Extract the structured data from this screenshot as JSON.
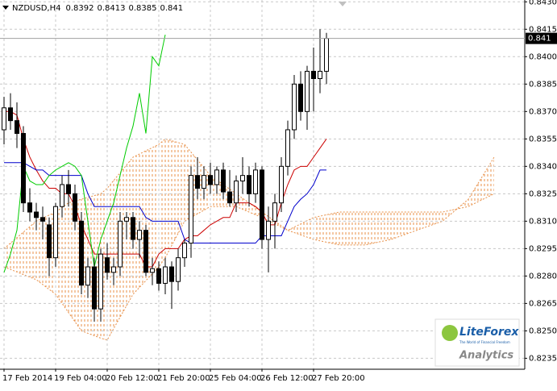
{
  "chart_data": {
    "type": "candlestick",
    "symbol": "NZDUSD,H4",
    "categories": [
      "17 Feb 2014",
      null,
      null,
      null,
      null,
      null,
      null,
      null,
      "19 Feb 04:00",
      null,
      null,
      null,
      null,
      null,
      null,
      null,
      "20 Feb 12:00",
      null,
      null,
      null,
      null,
      null,
      null,
      null,
      "21 Feb 20:00",
      null,
      null,
      null,
      null,
      null,
      null,
      null,
      "25 Feb 04:00",
      null,
      null,
      null,
      null,
      null,
      null,
      null,
      "26 Feb 12:00",
      null,
      null,
      null,
      null,
      null,
      null,
      null,
      "27 Feb 20:00",
      null,
      null
    ],
    "ohlc": {
      "open": [
        0.836,
        0.8372,
        0.8365,
        0.8358,
        0.832,
        0.8315,
        0.8312,
        0.8308,
        0.829,
        0.8318,
        0.833,
        0.8325,
        0.831,
        0.8275,
        0.8285,
        0.8262,
        0.829,
        0.8282,
        0.8285,
        0.831,
        0.8312,
        0.83,
        0.8305,
        0.8282,
        0.8284,
        0.8276,
        0.8285,
        0.8277,
        0.829,
        0.8298,
        0.8335,
        0.8328,
        0.8335,
        0.833,
        0.8338,
        0.8326,
        0.832,
        0.8332,
        0.8335,
        0.8325,
        0.8338,
        0.83,
        0.831,
        0.832,
        0.834,
        0.836,
        0.8385,
        0.837,
        0.8392,
        0.8388,
        0.8392
      ],
      "high": [
        0.8378,
        0.838,
        0.8375,
        0.8362,
        0.8328,
        0.832,
        0.8318,
        0.8312,
        0.832,
        0.8335,
        0.8338,
        0.833,
        0.8315,
        0.829,
        0.829,
        0.8295,
        0.8298,
        0.829,
        0.8315,
        0.8315,
        0.8315,
        0.831,
        0.8308,
        0.829,
        0.8288,
        0.829,
        0.8288,
        0.8295,
        0.83,
        0.834,
        0.8345,
        0.834,
        0.8342,
        0.834,
        0.8342,
        0.8338,
        0.8335,
        0.8345,
        0.834,
        0.8342,
        0.834,
        0.8318,
        0.8325,
        0.8345,
        0.8365,
        0.839,
        0.8392,
        0.8395,
        0.8405,
        0.8415,
        0.8413
      ],
      "low": [
        0.8352,
        0.836,
        0.835,
        0.8315,
        0.831,
        0.8305,
        0.83,
        0.828,
        0.8285,
        0.8312,
        0.8318,
        0.8305,
        0.827,
        0.8268,
        0.8255,
        0.8255,
        0.8278,
        0.8275,
        0.828,
        0.83,
        0.8295,
        0.829,
        0.828,
        0.8275,
        0.8272,
        0.827,
        0.8262,
        0.8272,
        0.8285,
        0.829,
        0.8322,
        0.8322,
        0.8325,
        0.8325,
        0.8322,
        0.8318,
        0.8315,
        0.8325,
        0.8318,
        0.832,
        0.8295,
        0.8282,
        0.8295,
        0.8315,
        0.8335,
        0.8355,
        0.8365,
        0.836,
        0.837,
        0.838,
        0.8385
      ],
      "close": [
        0.8372,
        0.8365,
        0.8358,
        0.832,
        0.8315,
        0.8312,
        0.831,
        0.829,
        0.8318,
        0.833,
        0.8325,
        0.831,
        0.8275,
        0.8285,
        0.8262,
        0.8292,
        0.8282,
        0.8285,
        0.831,
        0.8312,
        0.83,
        0.8305,
        0.8282,
        0.8284,
        0.8276,
        0.8285,
        0.8277,
        0.829,
        0.8298,
        0.8335,
        0.8328,
        0.8335,
        0.833,
        0.8338,
        0.8326,
        0.832,
        0.8332,
        0.8335,
        0.8325,
        0.8338,
        0.83,
        0.831,
        0.832,
        0.834,
        0.836,
        0.8385,
        0.837,
        0.8392,
        0.8388,
        0.8392,
        0.841
      ],
      "up_color": "#ffffff",
      "down_color": "#000000",
      "edge_color": "#000000"
    },
    "series": [
      {
        "color": "#cc0000",
        "values": [
          0.837,
          0.837,
          0.8368,
          0.8355,
          0.8345,
          0.8338,
          0.8332,
          0.8328,
          0.8328,
          0.8325,
          0.8325,
          0.8318,
          0.8308,
          0.83,
          0.8292,
          0.8292,
          0.8292,
          0.8292,
          0.8292,
          0.8292,
          0.8292,
          0.8292,
          0.8285,
          0.8285,
          0.8292,
          0.8295,
          0.8295,
          0.8295,
          0.83,
          0.8302,
          0.8302,
          0.8305,
          0.8308,
          0.831,
          0.8312,
          0.8312,
          0.832,
          0.832,
          0.832,
          0.8318,
          0.8315,
          0.8308,
          0.8308,
          0.832,
          0.833,
          0.8338,
          0.834,
          0.834,
          0.8345,
          0.835,
          0.8355
        ]
      },
      {
        "color": "#0000cc",
        "values": [
          0.8342,
          0.8342,
          0.8342,
          0.8342,
          0.834,
          0.8338,
          0.8338,
          0.8335,
          0.8335,
          0.8335,
          0.8335,
          0.8335,
          0.8335,
          0.8325,
          0.8318,
          0.8318,
          0.8318,
          0.8318,
          0.8318,
          0.8318,
          0.8318,
          0.8318,
          0.8312,
          0.831,
          0.831,
          0.831,
          0.831,
          0.831,
          0.83,
          0.8298,
          0.8298,
          0.8298,
          0.8298,
          0.8298,
          0.8298,
          0.8298,
          0.8298,
          0.8298,
          0.8298,
          0.8298,
          0.8302,
          0.8302,
          0.8302,
          0.8302,
          0.831,
          0.8318,
          0.8322,
          0.8325,
          0.833,
          0.8338,
          0.8338
        ]
      },
      {
        "color": "#00cc00",
        "values": [
          0.8282,
          0.8292,
          0.8305,
          0.834,
          0.8332,
          0.833,
          0.833,
          0.8335,
          0.8338,
          0.834,
          0.8342,
          0.834,
          0.8335,
          0.831,
          0.8285,
          0.83,
          0.831,
          0.832,
          0.8335,
          0.835,
          0.8362,
          0.838,
          0.8358,
          0.84,
          0.8395,
          0.8412,
          null,
          null,
          null,
          null,
          null,
          null,
          null,
          null,
          null,
          null,
          null,
          null,
          null,
          null,
          null,
          null,
          null,
          null,
          null,
          null,
          null,
          null,
          null,
          null,
          null
        ]
      }
    ],
    "cloud": {
      "color": "#e8914a",
      "x": [
        0,
        5,
        8,
        10,
        12,
        15,
        16,
        20,
        24,
        25,
        28,
        32,
        36,
        40,
        44,
        48,
        52,
        56,
        60,
        64,
        68,
        72,
        76
      ],
      "span_a": [
        0.8295,
        0.831,
        0.8315,
        0.832,
        0.8322,
        0.8325,
        0.8328,
        0.8345,
        0.8352,
        0.8355,
        0.8352,
        0.8335,
        0.8325,
        0.8315,
        0.8305,
        0.83,
        0.8297,
        0.8297,
        0.83,
        0.8305,
        0.831,
        0.8322,
        0.8345
      ],
      "span_b": [
        0.8285,
        0.8278,
        0.827,
        0.826,
        0.825,
        0.8246,
        0.8245,
        0.827,
        0.8285,
        0.829,
        0.831,
        0.8318,
        0.8318,
        0.8312,
        0.8305,
        0.8312,
        0.8315,
        0.8315,
        0.8315,
        0.8315,
        0.8315,
        0.8318,
        0.8325
      ]
    },
    "ylim": [
      0.8229,
      0.8431
    ],
    "yticks": [
      {
        "value": 0.843,
        "label": "0.8430"
      },
      {
        "value": 0.8415,
        "label": "0.8415"
      },
      {
        "value": 0.84,
        "label": "0.8400"
      },
      {
        "value": 0.8385,
        "label": "0.8385"
      },
      {
        "value": 0.837,
        "label": "0.8370"
      },
      {
        "value": 0.8355,
        "label": "0.8355"
      },
      {
        "value": 0.834,
        "label": "0.8340"
      },
      {
        "value": 0.8325,
        "label": "0.8325"
      },
      {
        "value": 0.831,
        "label": "0.8310"
      },
      {
        "value": 0.8295,
        "label": "0.8295"
      },
      {
        "value": 0.828,
        "label": "0.8280"
      },
      {
        "value": 0.8265,
        "label": "0.8265"
      },
      {
        "value": 0.825,
        "label": "0.8250"
      },
      {
        "value": 0.8235,
        "label": "0.8235"
      }
    ],
    "grid": true,
    "logo": {
      "brand": "LiteForex",
      "tagline": "The World of Financial Freedom",
      "product": "Analytics"
    }
  }
}
